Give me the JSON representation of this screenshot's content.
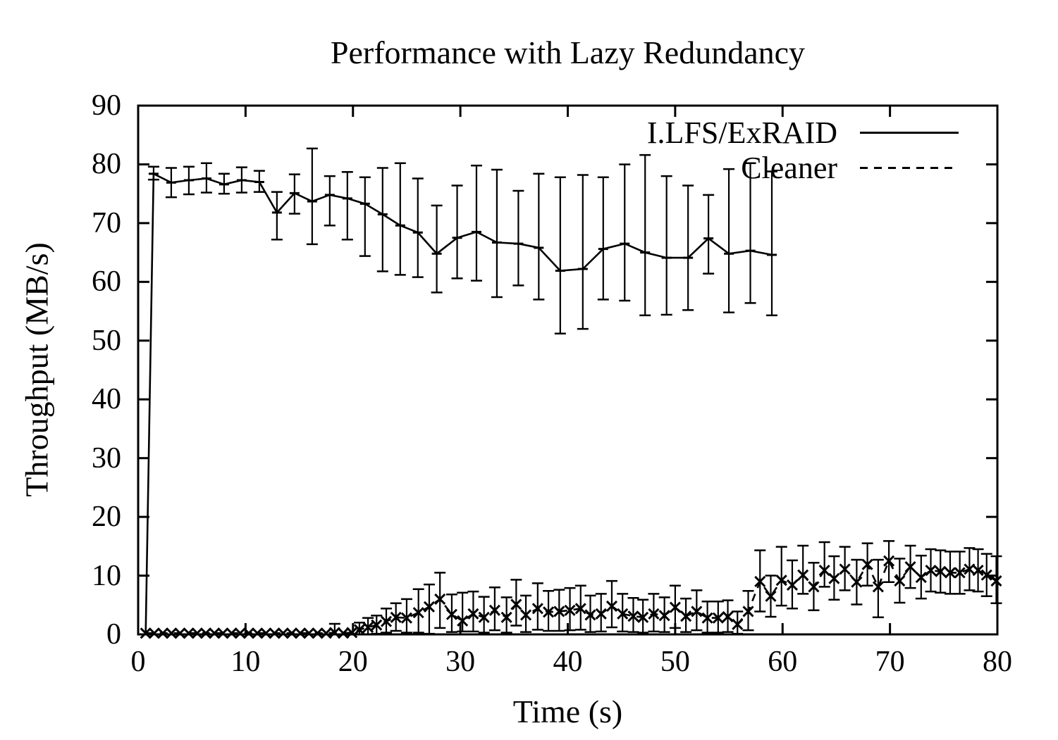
{
  "colors": {
    "foreground": "#000000",
    "background": "#ffffff"
  },
  "chart_data": {
    "type": "line",
    "title": "Performance with Lazy Redundancy",
    "xlabel": "Time (s)",
    "ylabel": "Throughput (MB/s)",
    "xlim": [
      0,
      80
    ],
    "ylim": [
      0,
      90
    ],
    "xticks": [
      0,
      10,
      20,
      30,
      40,
      50,
      60,
      70,
      80
    ],
    "yticks": [
      0,
      10,
      20,
      30,
      40,
      50,
      60,
      70,
      80,
      90
    ],
    "grid": false,
    "legend_position": "top-right-inside",
    "series": [
      {
        "name": "I.LFS/ExRAID",
        "style": "solid",
        "marker": "dash",
        "error_bars": true,
        "points": [
          [
            0.7,
            0.2
          ],
          [
            1.44,
            78.4,
            77.4,
            79.6
          ],
          [
            3.08,
            76.9,
            74.4,
            79.4
          ],
          [
            4.72,
            77.3,
            74.9,
            79.6
          ],
          [
            6.36,
            77.6,
            75.2,
            80.2
          ],
          [
            8.0,
            76.6,
            75.0,
            78.4
          ],
          [
            9.64,
            77.3,
            75.2,
            79.5
          ],
          [
            11.28,
            77.0,
            75.3,
            78.9
          ],
          [
            12.92,
            71.8,
            67.2,
            75.3
          ],
          [
            14.56,
            75.1,
            71.6,
            78.3
          ],
          [
            16.2,
            73.7,
            66.4,
            82.7
          ],
          [
            17.84,
            74.8,
            69.6,
            78.0
          ],
          [
            19.48,
            74.2,
            67.2,
            78.7
          ],
          [
            21.12,
            73.3,
            64.4,
            77.8
          ],
          [
            22.76,
            71.5,
            61.8,
            79.4
          ],
          [
            24.4,
            69.6,
            61.2,
            80.2
          ],
          [
            26.04,
            68.4,
            60.8,
            77.6
          ],
          [
            27.8,
            64.8,
            58.2,
            73.0
          ],
          [
            29.7,
            67.5,
            60.6,
            76.4
          ],
          [
            31.5,
            68.5,
            60.2,
            79.8
          ],
          [
            33.4,
            66.7,
            57.4,
            79.1
          ],
          [
            35.4,
            66.5,
            59.4,
            75.5
          ],
          [
            37.3,
            65.8,
            57.0,
            78.4
          ],
          [
            39.3,
            61.9,
            51.2,
            77.8
          ],
          [
            41.4,
            62.2,
            52.0,
            78.2
          ],
          [
            43.3,
            65.6,
            57.0,
            77.8
          ],
          [
            45.3,
            66.5,
            56.8,
            80.0
          ],
          [
            47.2,
            65.0,
            54.3,
            81.6
          ],
          [
            49.2,
            64.1,
            54.4,
            78.0
          ],
          [
            51.2,
            64.1,
            55.2,
            76.4
          ],
          [
            53.1,
            67.4,
            61.4,
            74.8
          ],
          [
            55.0,
            64.8,
            54.8,
            79.2
          ],
          [
            57.0,
            65.3,
            56.4,
            80.2
          ],
          [
            59.0,
            64.6,
            54.3,
            78.8
          ]
        ]
      },
      {
        "name": "Cleaner",
        "style": "dashed",
        "marker": "x",
        "error_bars": true,
        "points": [
          [
            0.7,
            0.2
          ],
          [
            1.5,
            0.2
          ],
          [
            2.3,
            0.2
          ],
          [
            3.1,
            0.2
          ],
          [
            3.9,
            0.2
          ],
          [
            4.7,
            0.2
          ],
          [
            5.5,
            0.2
          ],
          [
            6.3,
            0.2
          ],
          [
            7.1,
            0.2
          ],
          [
            7.9,
            0.2
          ],
          [
            8.7,
            0.2
          ],
          [
            9.5,
            0.2
          ],
          [
            10.3,
            0.2
          ],
          [
            11.1,
            0.2
          ],
          [
            11.9,
            0.2
          ],
          [
            12.7,
            0.2
          ],
          [
            13.5,
            0.2
          ],
          [
            14.3,
            0.2
          ],
          [
            15.1,
            0.2
          ],
          [
            15.9,
            0.2
          ],
          [
            16.7,
            0.2
          ],
          [
            17.5,
            0.2
          ],
          [
            18.3,
            0.3,
            0,
            1.8
          ],
          [
            19.1,
            0.2
          ],
          [
            19.9,
            0.3
          ],
          [
            20.6,
            0.8,
            0,
            2.0
          ],
          [
            21.4,
            1.2,
            0,
            2.8
          ],
          [
            22.2,
            1.6,
            0.1,
            3.2
          ],
          [
            23.1,
            2.2,
            0.3,
            4.4
          ],
          [
            24.0,
            2.9,
            0.6,
            5.3
          ],
          [
            25.0,
            2.8,
            0.3,
            6.0
          ],
          [
            26.1,
            3.7,
            0.3,
            7.7
          ],
          [
            27.1,
            4.7,
            0.1,
            8.5
          ],
          [
            28.1,
            6.0,
            1.1,
            10.5
          ],
          [
            29.2,
            3.4,
            0.4,
            6.8
          ],
          [
            30.2,
            2.3,
            0.5,
            7.1
          ],
          [
            31.2,
            3.5,
            0.5,
            7.3
          ],
          [
            32.2,
            2.9,
            0.3,
            6.4
          ],
          [
            33.2,
            4.1,
            0.7,
            8.0
          ],
          [
            34.3,
            2.9,
            0.3,
            6.3
          ],
          [
            35.2,
            5.1,
            1.5,
            9.3
          ],
          [
            36.1,
            3.3,
            0.4,
            6.6
          ],
          [
            37.2,
            4.4,
            0.8,
            8.7
          ],
          [
            38.2,
            3.8,
            0.6,
            7.4
          ],
          [
            39.2,
            3.9,
            0.6,
            7.6
          ],
          [
            40.2,
            4.1,
            0.7,
            7.9
          ],
          [
            41.2,
            4.4,
            0.8,
            8.3
          ],
          [
            42.1,
            3.3,
            0.4,
            6.6
          ],
          [
            43.1,
            3.5,
            0.5,
            6.9
          ],
          [
            44.1,
            4.8,
            1.2,
            9.1
          ],
          [
            45.1,
            3.5,
            0.5,
            6.9
          ],
          [
            46.1,
            3.1,
            0.4,
            6.2
          ],
          [
            47.0,
            2.9,
            0.3,
            5.9
          ],
          [
            48.0,
            3.5,
            0.5,
            6.9
          ],
          [
            49.0,
            3.2,
            0.4,
            6.3
          ],
          [
            50.0,
            4.6,
            1.1,
            8.3
          ],
          [
            51.0,
            3.1,
            0.4,
            6.1
          ],
          [
            52.0,
            3.9,
            0.7,
            7.5
          ],
          [
            53.0,
            2.8,
            0.3,
            5.6
          ],
          [
            54.0,
            2.8,
            0.3,
            5.6
          ],
          [
            54.9,
            3.0,
            0.4,
            5.8
          ],
          [
            55.8,
            1.7,
            0.1,
            3.9
          ],
          [
            56.8,
            3.9,
            0.7,
            7.4
          ],
          [
            57.9,
            9.0,
            3.9,
            14.3
          ],
          [
            58.9,
            6.5,
            3.0,
            10.0
          ],
          [
            59.9,
            9.2,
            4.9,
            14.9
          ],
          [
            60.9,
            8.4,
            4.4,
            12.6
          ],
          [
            61.9,
            10.1,
            6.9,
            15.1
          ],
          [
            62.9,
            8.1,
            4.1,
            12.2
          ],
          [
            63.9,
            10.9,
            8.1,
            15.7
          ],
          [
            64.8,
            9.5,
            5.9,
            13.3
          ],
          [
            65.8,
            11.1,
            7.5,
            14.9
          ],
          [
            66.9,
            8.9,
            5.1,
            12.7
          ],
          [
            67.9,
            11.9,
            8.3,
            15.5
          ],
          [
            68.9,
            8.1,
            2.9,
            12.7
          ],
          [
            69.9,
            12.5,
            8.9,
            15.9
          ],
          [
            70.9,
            9.1,
            5.4,
            12.9
          ],
          [
            71.9,
            11.5,
            7.9,
            15.1
          ],
          [
            72.9,
            9.7,
            6.1,
            13.4
          ],
          [
            73.8,
            10.9,
            7.3,
            14.5
          ],
          [
            74.7,
            10.7,
            7.1,
            14.3
          ],
          [
            75.6,
            10.5,
            6.9,
            14.1
          ],
          [
            76.5,
            10.5,
            6.9,
            14.1
          ],
          [
            77.4,
            11.1,
            7.5,
            14.7
          ],
          [
            78.2,
            10.9,
            7.3,
            14.5
          ],
          [
            79.0,
            10.1,
            6.5,
            13.7
          ],
          [
            79.9,
            9.1,
            5.3,
            13.3
          ]
        ]
      }
    ]
  }
}
